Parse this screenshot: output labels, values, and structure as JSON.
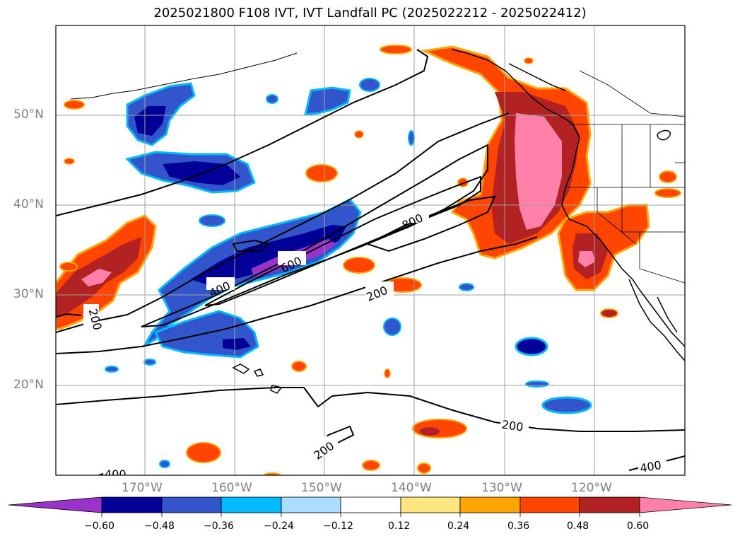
{
  "title": "2025021800 F108 IVT, IVT Landfall PC (2025022212 - 2025022412)",
  "latitude_labels": [
    "50°N",
    "40°N",
    "30°N",
    "20°N"
  ],
  "longitude_labels": [
    "170°W",
    "160°W",
    "150°W",
    "140°W",
    "130°W",
    "120°W"
  ],
  "contour_labels": [
    "200",
    "400",
    "600",
    "800",
    "200",
    "200",
    "200",
    "400",
    "400"
  ],
  "colorbar": {
    "tick_labels": [
      "−0.60",
      "−0.48",
      "−0.36",
      "−0.24",
      "−0.12",
      "0.12",
      "0.24",
      "0.36",
      "0.48",
      "0.60"
    ],
    "colors": [
      "#9933cc",
      "#000099",
      "#3355cc",
      "#00bbff",
      "#aaddff",
      "#ffffff",
      "#ffe680",
      "#ffa500",
      "#ff4500",
      "#b22222",
      "#ff80a8"
    ]
  },
  "colors": {
    "map_frame": "#000000",
    "gridline": "#a0a0a0",
    "axis_label": "#808080"
  }
}
